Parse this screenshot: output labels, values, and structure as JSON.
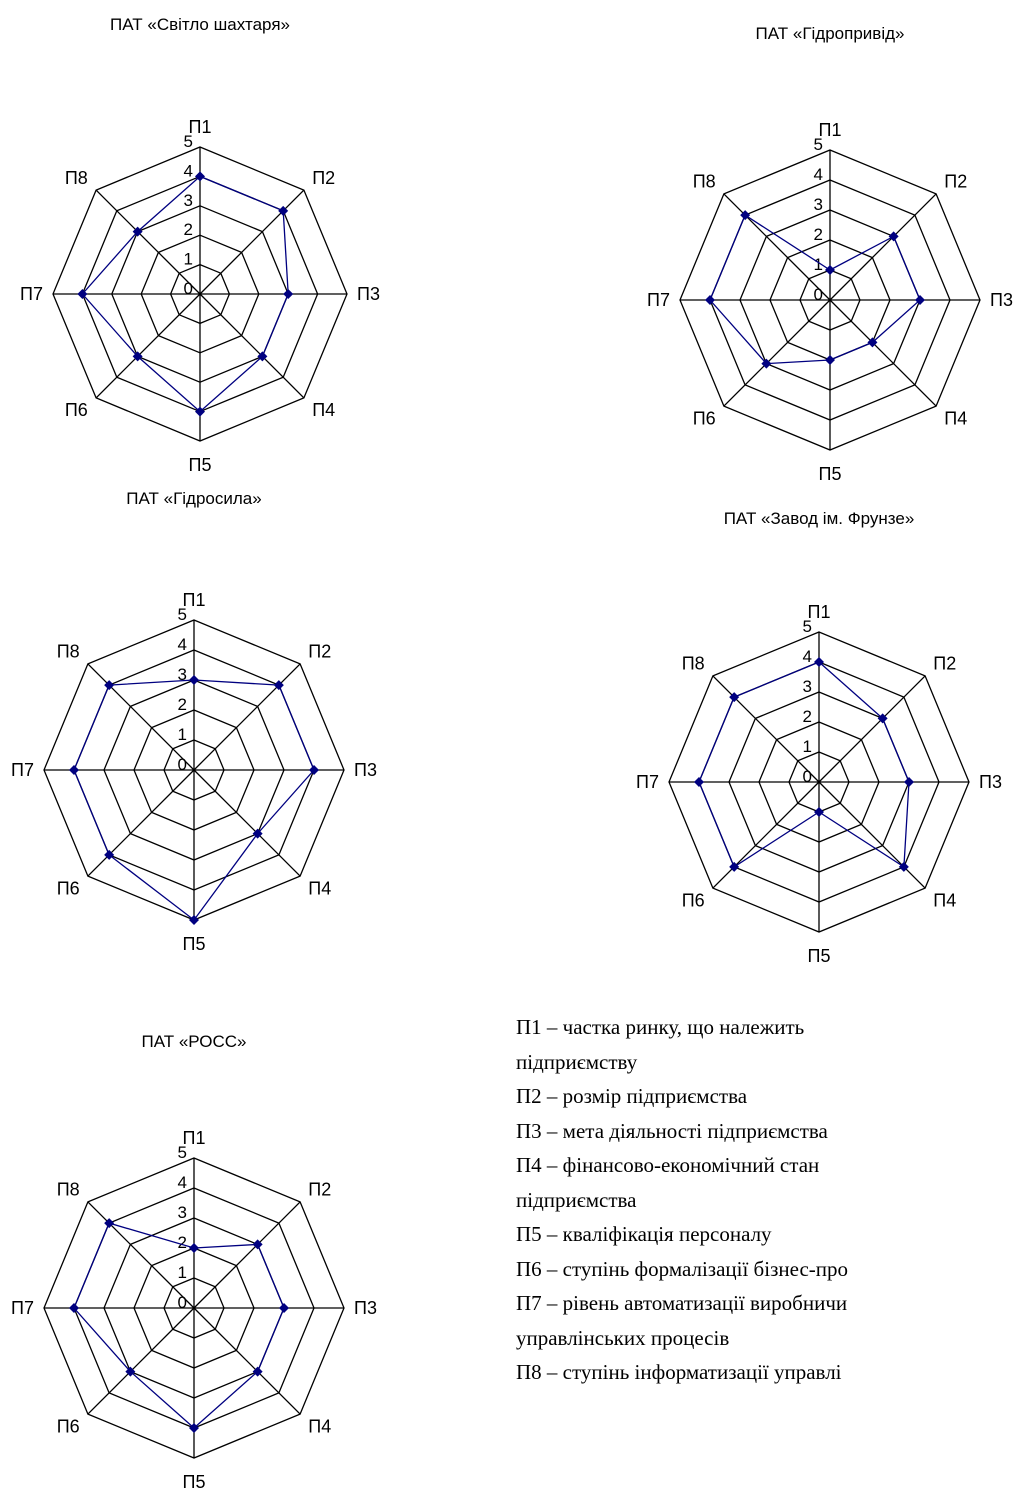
{
  "chart_data": [
    {
      "type": "radar",
      "title": "ПАТ «Світло шахтаря»",
      "categories": [
        "П1",
        "П2",
        "П3",
        "П4",
        "П5",
        "П6",
        "П7",
        "П8"
      ],
      "ticks": [
        "0",
        "1",
        "2",
        "3",
        "4",
        "5"
      ],
      "rlim": [
        0,
        5
      ],
      "series": [
        {
          "values": [
            4,
            4,
            3,
            3,
            4,
            3,
            4,
            3
          ],
          "color": "#000080"
        }
      ]
    },
    {
      "type": "radar",
      "title": "ПАТ «Гідропривід»",
      "categories": [
        "П1",
        "П2",
        "П3",
        "П4",
        "П5",
        "П6",
        "П7",
        "П8"
      ],
      "ticks": [
        "0",
        "1",
        "2",
        "3",
        "4",
        "5"
      ],
      "rlim": [
        0,
        5
      ],
      "series": [
        {
          "values": [
            1,
            3,
            3,
            2,
            2,
            3,
            4,
            4
          ],
          "color": "#000080"
        }
      ]
    },
    {
      "type": "radar",
      "title": "ПАТ «Гідросила»",
      "categories": [
        "П1",
        "П2",
        "П3",
        "П4",
        "П5",
        "П6",
        "П7",
        "П8"
      ],
      "ticks": [
        "0",
        "1",
        "2",
        "3",
        "4",
        "5"
      ],
      "rlim": [
        0,
        5
      ],
      "series": [
        {
          "values": [
            3,
            4,
            4,
            3,
            5,
            4,
            4,
            4
          ],
          "color": "#000080"
        }
      ]
    },
    {
      "type": "radar",
      "title": "ПАТ «Завод ім. Фрунзе»",
      "categories": [
        "П1",
        "П2",
        "П3",
        "П4",
        "П5",
        "П6",
        "П7",
        "П8"
      ],
      "ticks": [
        "0",
        "1",
        "2",
        "3",
        "4",
        "5"
      ],
      "rlim": [
        0,
        5
      ],
      "series": [
        {
          "values": [
            4,
            3,
            3,
            4,
            1,
            4,
            4,
            4
          ],
          "color": "#000080"
        }
      ]
    },
    {
      "type": "radar",
      "title": "ПАТ «РОСС»",
      "categories": [
        "П1",
        "П2",
        "П3",
        "П4",
        "П5",
        "П6",
        "П7",
        "П8"
      ],
      "ticks": [
        "0",
        "1",
        "2",
        "3",
        "4",
        "5"
      ],
      "rlim": [
        0,
        5
      ],
      "series": [
        {
          "values": [
            2,
            3,
            3,
            3,
            4,
            3,
            4,
            4
          ],
          "color": "#000080"
        }
      ]
    }
  ],
  "legend": [
    "П1 – частка ринку, що належить",
    "підприємству",
    "П2 – розмір підприємства",
    "П3 – мета діяльності підприємства",
    "П4 – фінансово-економічний стан",
    "підприємства",
    "П5 – кваліфікація персоналу",
    "П6 – ступінь формалізації бізнес-про",
    "П7 – рівень автоматизації виробничи",
    "управлінських процесів",
    "П8 – ступінь інформатизації управлі"
  ]
}
